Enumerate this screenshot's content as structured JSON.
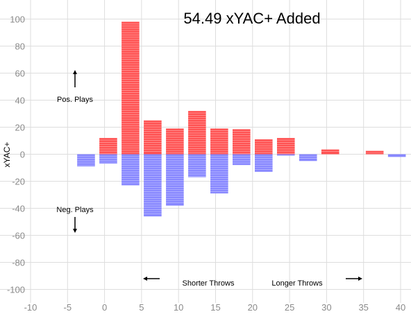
{
  "chart_data": {
    "type": "bar",
    "title": "54.49 xYAC+ Added",
    "xlabel": "",
    "ylabel": "xYAC+",
    "xlim": [
      -10,
      40
    ],
    "ylim": [
      -110,
      110
    ],
    "x_ticks": [
      -10,
      -5,
      0,
      5,
      10,
      15,
      20,
      25,
      30,
      35,
      40
    ],
    "y_ticks": [
      -100,
      -80,
      -60,
      -40,
      -20,
      0,
      20,
      40,
      60,
      80,
      100
    ],
    "grid": true,
    "bar_width": 2.4,
    "series": [
      {
        "name": "Positive",
        "color": "#ff5252",
        "points": [
          {
            "x": 0.5,
            "value": 12
          },
          {
            "x": 3.5,
            "value": 98
          },
          {
            "x": 6.5,
            "value": 25
          },
          {
            "x": 9.5,
            "value": 19
          },
          {
            "x": 12.5,
            "value": 32
          },
          {
            "x": 15.5,
            "value": 19
          },
          {
            "x": 18.5,
            "value": 18.5
          },
          {
            "x": 21.5,
            "value": 11
          },
          {
            "x": 24.5,
            "value": 12
          },
          {
            "x": 30.5,
            "value": 3.5
          },
          {
            "x": 36.5,
            "value": 2.5
          }
        ]
      },
      {
        "name": "Negative",
        "color": "#8888ff",
        "points": [
          {
            "x": -2.5,
            "value": -9
          },
          {
            "x": 0.5,
            "value": -7
          },
          {
            "x": 3.5,
            "value": -23
          },
          {
            "x": 6.5,
            "value": -46
          },
          {
            "x": 9.5,
            "value": -38
          },
          {
            "x": 12.5,
            "value": -17
          },
          {
            "x": 15.5,
            "value": -29
          },
          {
            "x": 18.5,
            "value": -8
          },
          {
            "x": 21.5,
            "value": -13
          },
          {
            "x": 24.5,
            "value": -1
          },
          {
            "x": 27.5,
            "value": -5
          },
          {
            "x": 39.5,
            "value": -2
          }
        ]
      }
    ],
    "annotations": {
      "pos_plays": "Pos. Plays",
      "neg_plays": "Neg. Plays",
      "shorter_throws": "Shorter Throws",
      "longer_throws": "Longer Throws"
    }
  }
}
